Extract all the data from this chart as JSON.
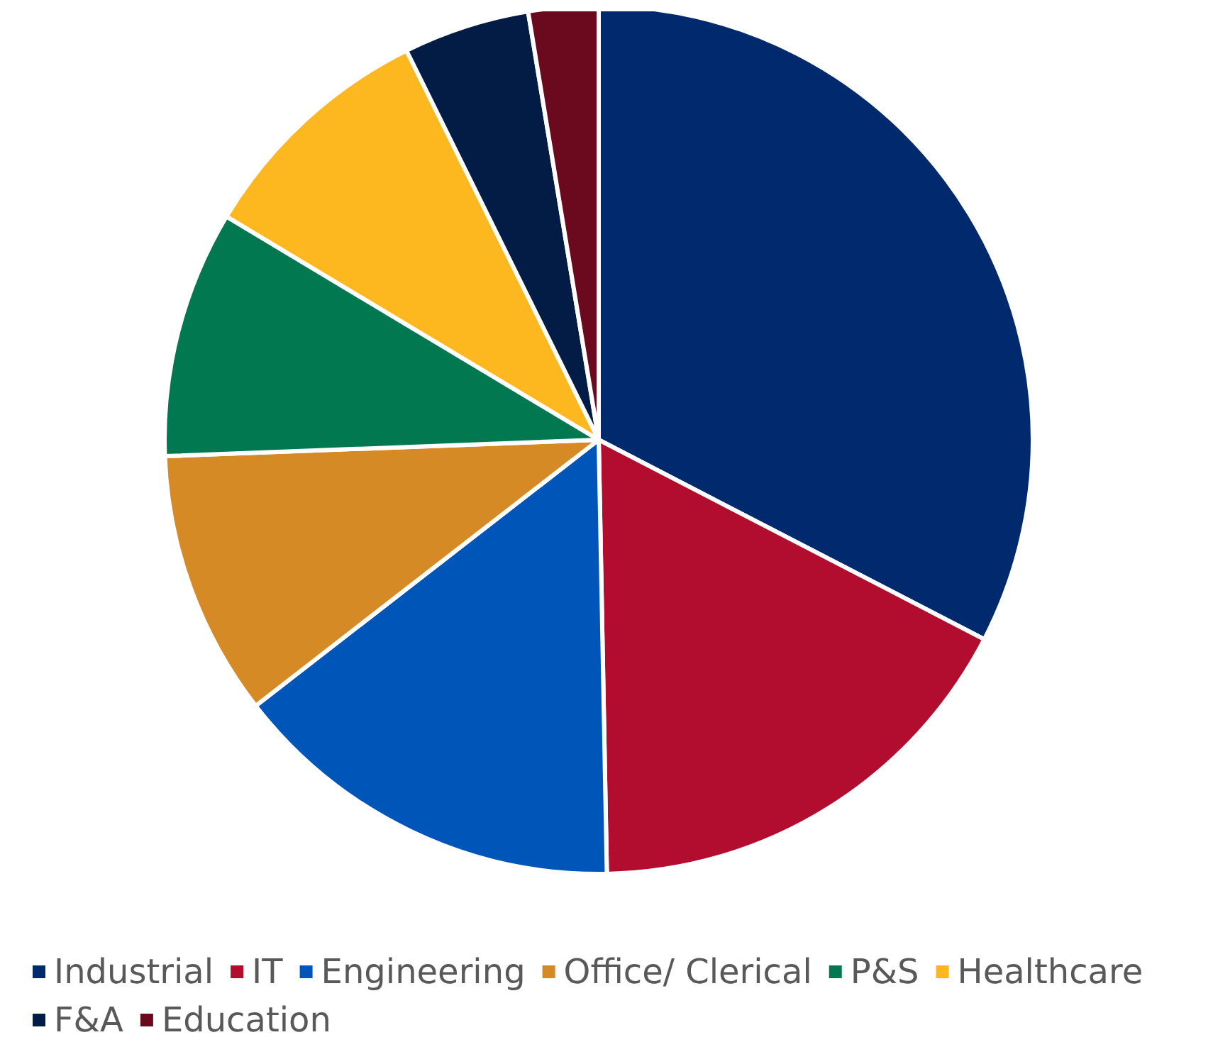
{
  "chart_data": {
    "type": "pie",
    "categories": [
      "Industrial",
      "IT",
      "Engineering",
      "Office/ Clerical",
      "P&S",
      "Healthcare",
      "F&A",
      "Education"
    ],
    "values": [
      32.6,
      17.1,
      14.8,
      9.9,
      9.2,
      9.1,
      4.7,
      2.6
    ],
    "colors": [
      "#012a6e",
      "#b20c2e",
      "#0055b8",
      "#d68a26",
      "#027851",
      "#fdb71f",
      "#031c45",
      "#6b0a1e"
    ],
    "legend": "bottom"
  }
}
